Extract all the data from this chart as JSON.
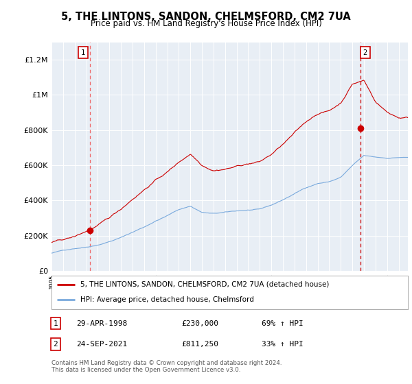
{
  "title": "5, THE LINTONS, SANDON, CHELMSFORD, CM2 7UA",
  "subtitle": "Price paid vs. HM Land Registry's House Price Index (HPI)",
  "plot_bg_color": "#e8eef5",
  "red_color": "#cc0000",
  "blue_color": "#7aaadd",
  "vline1_color": "#ee6666",
  "vline2_color": "#cc0000",
  "sale1_date_x": 1998.33,
  "sale1_price": 230000,
  "sale2_date_x": 2021.72,
  "sale2_price": 811250,
  "yticks": [
    0,
    200000,
    400000,
    600000,
    800000,
    1000000,
    1200000
  ],
  "ytick_labels": [
    "£0",
    "£200K",
    "£400K",
    "£600K",
    "£800K",
    "£1M",
    "£1.2M"
  ],
  "ylim": [
    0,
    1300000
  ],
  "xlim_start": 1995.0,
  "xlim_end": 2025.8,
  "legend_line1": "5, THE LINTONS, SANDON, CHELMSFORD, CM2 7UA (detached house)",
  "legend_line2": "HPI: Average price, detached house, Chelmsford",
  "note1_label": "1",
  "note1_date": "29-APR-1998",
  "note1_price": "£230,000",
  "note1_hpi": "69% ↑ HPI",
  "note2_label": "2",
  "note2_date": "24-SEP-2021",
  "note2_price": "£811,250",
  "note2_hpi": "33% ↑ HPI",
  "footer": "Contains HM Land Registry data © Crown copyright and database right 2024.\nThis data is licensed under the Open Government Licence v3.0."
}
